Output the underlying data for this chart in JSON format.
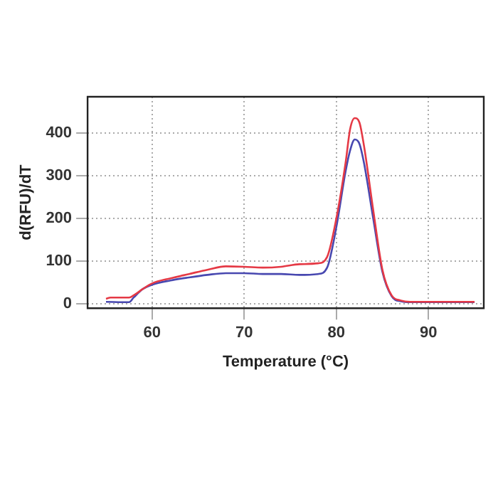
{
  "chart_data": {
    "type": "line",
    "xlabel": "Temperature (°C)",
    "ylabel": "d(RFU)/dT",
    "xlim": [
      53,
      96
    ],
    "xticks": [
      60,
      70,
      80,
      90
    ],
    "ylim": [
      -10,
      485
    ],
    "yticks": [
      0,
      100,
      200,
      300,
      400
    ],
    "grid": true,
    "line_style": "solid",
    "marker": "none",
    "series": [
      {
        "color": "#e53945",
        "x": [
          55,
          55.5,
          57.5,
          58,
          59,
          60,
          62,
          64,
          66,
          68,
          70,
          72,
          74,
          76,
          78,
          79,
          80,
          81,
          81.5,
          82,
          82.5,
          83,
          84,
          85,
          86,
          87,
          88,
          90,
          95
        ],
        "values": [
          12,
          15,
          15,
          20,
          35,
          48,
          60,
          70,
          80,
          88,
          87,
          85,
          87,
          93,
          95,
          110,
          200,
          330,
          410,
          435,
          425,
          370,
          220,
          80,
          20,
          8,
          5,
          5,
          5
        ]
      },
      {
        "color": "#4848b0",
        "x": [
          55,
          57.5,
          58,
          59,
          60,
          62,
          64,
          66,
          68,
          70,
          72,
          74,
          76,
          78,
          79,
          80,
          81,
          81.5,
          82,
          82.5,
          83,
          84,
          85,
          86,
          87,
          88,
          95
        ],
        "values": [
          5,
          4,
          15,
          35,
          45,
          55,
          62,
          68,
          72,
          72,
          70,
          70,
          68,
          70,
          85,
          180,
          310,
          360,
          385,
          375,
          330,
          200,
          75,
          18,
          6,
          4,
          4
        ]
      }
    ]
  }
}
